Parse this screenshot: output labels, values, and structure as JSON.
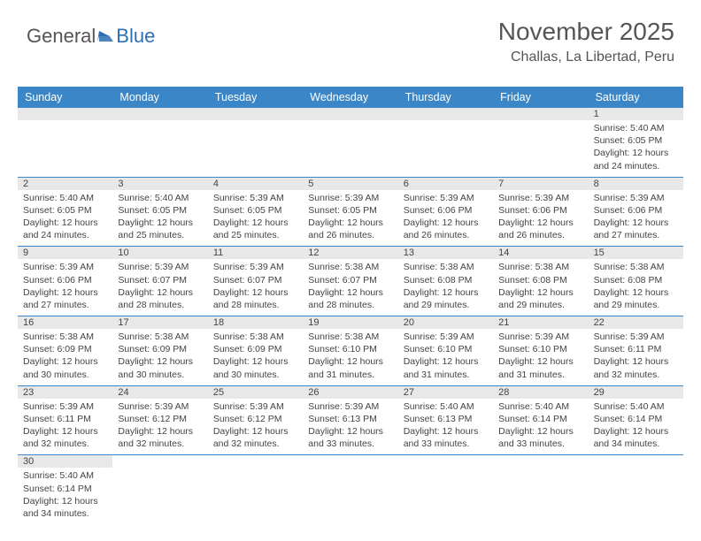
{
  "logo": {
    "text1": "General",
    "text2": "Blue"
  },
  "header": {
    "title": "November 2025",
    "location": "Challas, La Libertad, Peru"
  },
  "colors": {
    "header_bg": "#3b86c6",
    "header_text": "#ffffff",
    "row_divider": "#3b86c6",
    "daynum_bg": "#e8e8e8",
    "text": "#444444",
    "logo_gray": "#555555",
    "logo_blue": "#2d6fb5",
    "background": "#ffffff"
  },
  "daynames": [
    "Sunday",
    "Monday",
    "Tuesday",
    "Wednesday",
    "Thursday",
    "Friday",
    "Saturday"
  ],
  "weeks": [
    [
      null,
      null,
      null,
      null,
      null,
      null,
      {
        "n": "1",
        "sr": "5:40 AM",
        "ss": "6:05 PM",
        "dl": "12 hours and 24 minutes."
      }
    ],
    [
      {
        "n": "2",
        "sr": "5:40 AM",
        "ss": "6:05 PM",
        "dl": "12 hours and 24 minutes."
      },
      {
        "n": "3",
        "sr": "5:40 AM",
        "ss": "6:05 PM",
        "dl": "12 hours and 25 minutes."
      },
      {
        "n": "4",
        "sr": "5:39 AM",
        "ss": "6:05 PM",
        "dl": "12 hours and 25 minutes."
      },
      {
        "n": "5",
        "sr": "5:39 AM",
        "ss": "6:05 PM",
        "dl": "12 hours and 26 minutes."
      },
      {
        "n": "6",
        "sr": "5:39 AM",
        "ss": "6:06 PM",
        "dl": "12 hours and 26 minutes."
      },
      {
        "n": "7",
        "sr": "5:39 AM",
        "ss": "6:06 PM",
        "dl": "12 hours and 26 minutes."
      },
      {
        "n": "8",
        "sr": "5:39 AM",
        "ss": "6:06 PM",
        "dl": "12 hours and 27 minutes."
      }
    ],
    [
      {
        "n": "9",
        "sr": "5:39 AM",
        "ss": "6:06 PM",
        "dl": "12 hours and 27 minutes."
      },
      {
        "n": "10",
        "sr": "5:39 AM",
        "ss": "6:07 PM",
        "dl": "12 hours and 28 minutes."
      },
      {
        "n": "11",
        "sr": "5:39 AM",
        "ss": "6:07 PM",
        "dl": "12 hours and 28 minutes."
      },
      {
        "n": "12",
        "sr": "5:38 AM",
        "ss": "6:07 PM",
        "dl": "12 hours and 28 minutes."
      },
      {
        "n": "13",
        "sr": "5:38 AM",
        "ss": "6:08 PM",
        "dl": "12 hours and 29 minutes."
      },
      {
        "n": "14",
        "sr": "5:38 AM",
        "ss": "6:08 PM",
        "dl": "12 hours and 29 minutes."
      },
      {
        "n": "15",
        "sr": "5:38 AM",
        "ss": "6:08 PM",
        "dl": "12 hours and 29 minutes."
      }
    ],
    [
      {
        "n": "16",
        "sr": "5:38 AM",
        "ss": "6:09 PM",
        "dl": "12 hours and 30 minutes."
      },
      {
        "n": "17",
        "sr": "5:38 AM",
        "ss": "6:09 PM",
        "dl": "12 hours and 30 minutes."
      },
      {
        "n": "18",
        "sr": "5:38 AM",
        "ss": "6:09 PM",
        "dl": "12 hours and 30 minutes."
      },
      {
        "n": "19",
        "sr": "5:38 AM",
        "ss": "6:10 PM",
        "dl": "12 hours and 31 minutes."
      },
      {
        "n": "20",
        "sr": "5:39 AM",
        "ss": "6:10 PM",
        "dl": "12 hours and 31 minutes."
      },
      {
        "n": "21",
        "sr": "5:39 AM",
        "ss": "6:10 PM",
        "dl": "12 hours and 31 minutes."
      },
      {
        "n": "22",
        "sr": "5:39 AM",
        "ss": "6:11 PM",
        "dl": "12 hours and 32 minutes."
      }
    ],
    [
      {
        "n": "23",
        "sr": "5:39 AM",
        "ss": "6:11 PM",
        "dl": "12 hours and 32 minutes."
      },
      {
        "n": "24",
        "sr": "5:39 AM",
        "ss": "6:12 PM",
        "dl": "12 hours and 32 minutes."
      },
      {
        "n": "25",
        "sr": "5:39 AM",
        "ss": "6:12 PM",
        "dl": "12 hours and 32 minutes."
      },
      {
        "n": "26",
        "sr": "5:39 AM",
        "ss": "6:13 PM",
        "dl": "12 hours and 33 minutes."
      },
      {
        "n": "27",
        "sr": "5:40 AM",
        "ss": "6:13 PM",
        "dl": "12 hours and 33 minutes."
      },
      {
        "n": "28",
        "sr": "5:40 AM",
        "ss": "6:14 PM",
        "dl": "12 hours and 33 minutes."
      },
      {
        "n": "29",
        "sr": "5:40 AM",
        "ss": "6:14 PM",
        "dl": "12 hours and 34 minutes."
      }
    ],
    [
      {
        "n": "30",
        "sr": "5:40 AM",
        "ss": "6:14 PM",
        "dl": "12 hours and 34 minutes."
      },
      null,
      null,
      null,
      null,
      null,
      null
    ]
  ],
  "labels": {
    "sunrise": "Sunrise:",
    "sunset": "Sunset:",
    "daylight": "Daylight:"
  }
}
